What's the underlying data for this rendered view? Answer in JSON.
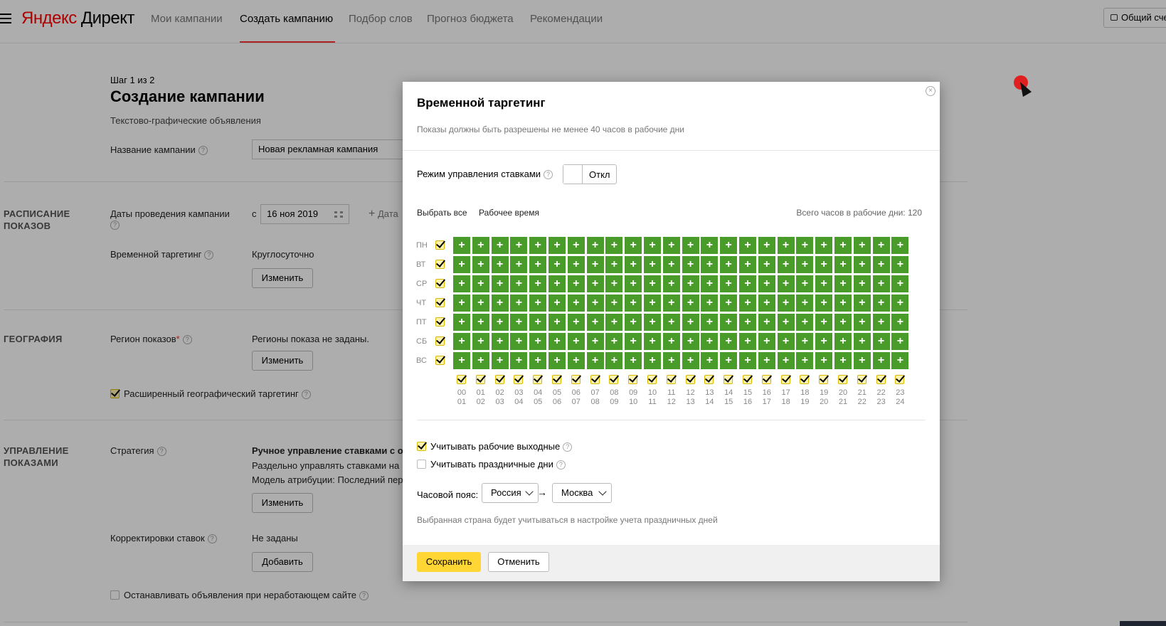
{
  "header": {
    "logo_brand": "Яндекс",
    "logo_product": "Директ",
    "nav": [
      "Мои кампании",
      "Создать кампанию",
      "Подбор слов",
      "Прогноз бюджета",
      "Рекомендации"
    ],
    "account_button": "Общий сче"
  },
  "page": {
    "step": "Шаг 1 из 2",
    "title": "Создание кампании",
    "subtitle": "Текстово-графические объявления",
    "campaign_name_label": "Название кампании",
    "campaign_name_value": "Новая рекламная кампания"
  },
  "schedule": {
    "section_title_1": "РАСПИСАНИЕ",
    "section_title_2": "ПОКАЗОВ",
    "dates_label": "Даты проведения кампании",
    "from_label": "с",
    "date_value": "16 ноя 2019",
    "add_date": "Дата",
    "targeting_label": "Временной таргетинг",
    "targeting_value": "Круглосуточно",
    "change_button": "Изменить"
  },
  "geo": {
    "section_title": "ГЕОГРАФИЯ",
    "region_label": "Регион показов",
    "required_mark": "*",
    "region_value": "Регионы показа не заданы.",
    "change_button": "Изменить",
    "extended_label": "Расширенный географический таргетинг"
  },
  "management": {
    "section_title_1": "УПРАВЛЕНИЕ",
    "section_title_2": "ПОКАЗАМИ",
    "strategy_label": "Стратегия",
    "strategy_value": "Ручное управление ставками с оп",
    "strategy_line2": "Раздельно управлять ставками на",
    "strategy_line3": "Модель атрибуции: Последний пер",
    "change_button": "Изменить",
    "bid_adjust_label": "Корректировки ставок",
    "bid_adjust_value": "Не заданы",
    "add_button": "Добавить",
    "stop_label": "Останавливать объявления при неработающем сайте"
  },
  "modal": {
    "title": "Временной таргетинг",
    "close_glyph": "×",
    "note": "Показы должны быть разрешены не менее 40 часов в рабочие дни",
    "bid_mode_label": "Режим управления ставками",
    "toggle_label": "Откл",
    "select_all": "Выбрать все",
    "work_time": "Рабочее время",
    "total_hours_label": "Всего часов в рабочие дни:",
    "total_hours_value": "120",
    "days": [
      "ПН",
      "ВТ",
      "СР",
      "ЧТ",
      "ПТ",
      "СБ",
      "ВС"
    ],
    "hours_top": [
      "00",
      "01",
      "02",
      "03",
      "04",
      "05",
      "06",
      "07",
      "08",
      "09",
      "10",
      "11",
      "12",
      "13",
      "14",
      "15",
      "16",
      "17",
      "18",
      "19",
      "20",
      "21",
      "22",
      "23"
    ],
    "hours_bottom": [
      "01",
      "02",
      "03",
      "04",
      "05",
      "06",
      "07",
      "08",
      "09",
      "10",
      "11",
      "12",
      "13",
      "14",
      "15",
      "16",
      "17",
      "18",
      "19",
      "20",
      "21",
      "22",
      "23",
      "24"
    ],
    "cell_glyph": "+",
    "cell_color": "#4a9c2a",
    "consider_workdays": "Учитывать рабочие выходные",
    "consider_holidays": "Учитывать праздничные дни",
    "timezone_label": "Часовой пояс:",
    "country": "Россия",
    "city": "Москва",
    "arrow": "→",
    "tz_note": "Выбранная страна будет учитываться в настройке учета праздничных дней",
    "save": "Сохранить",
    "cancel": "Отменить"
  }
}
